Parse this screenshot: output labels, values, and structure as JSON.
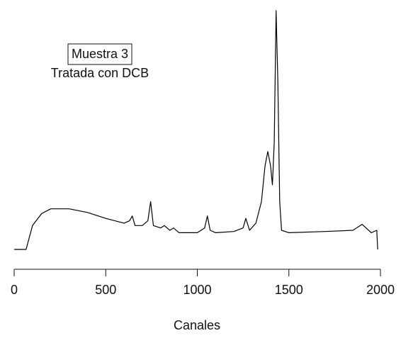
{
  "chart_data": {
    "type": "line",
    "annotations": [
      "Muestra 3",
      "Tratada con DCB"
    ],
    "xlabel": "Canales",
    "x": [
      0,
      65,
      100,
      150,
      200,
      300,
      400,
      500,
      600,
      630,
      645,
      660,
      700,
      730,
      745,
      760,
      800,
      820,
      850,
      870,
      900,
      1000,
      1040,
      1055,
      1070,
      1100,
      1200,
      1250,
      1265,
      1285,
      1320,
      1350,
      1370,
      1385,
      1400,
      1410,
      1420,
      1430,
      1440,
      1450,
      1460,
      1500,
      1700,
      1850,
      1900,
      1950,
      1980,
      1985
    ],
    "values": [
      0,
      0,
      10,
      15,
      17,
      17,
      15.5,
      13,
      11,
      12,
      14,
      10,
      10,
      12,
      20,
      10,
      9,
      10,
      8,
      9,
      7,
      7,
      9,
      14,
      8,
      7,
      7.5,
      9,
      13,
      8,
      11,
      20,
      35,
      41,
      35,
      27,
      45,
      100,
      70,
      20,
      8,
      7,
      7.5,
      8,
      10.5,
      7,
      8,
      0
    ],
    "color": "#000000",
    "xlim": [
      0,
      2000
    ],
    "xticks": [
      0,
      500,
      1000,
      1500,
      2000
    ],
    "ylim": [
      0,
      100
    ]
  }
}
